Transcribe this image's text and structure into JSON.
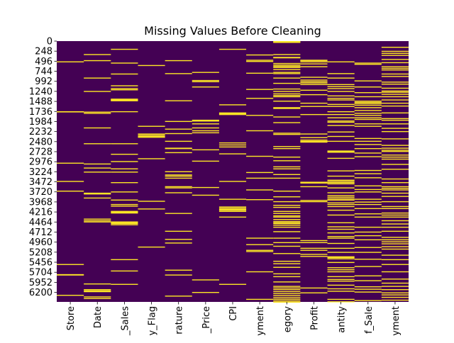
{
  "chart_data": {
    "type": "heatmap",
    "title": "Missing Values Before Cleaning",
    "xlabel": "",
    "ylabel": "",
    "columns": [
      "Store",
      "Date",
      "_Sales",
      "y_Flag",
      "rature",
      "_Price",
      "CPI",
      "yment",
      "egory",
      "Profit",
      "antity",
      "f_Sale",
      "yment"
    ],
    "y_ticks": [
      "0",
      "248",
      "496",
      "744",
      "992",
      "1240",
      "1488",
      "1736",
      "1984",
      "2232",
      "2480",
      "2728",
      "2976",
      "3224",
      "3472",
      "3720",
      "3968",
      "4216",
      "4464",
      "4712",
      "4960",
      "5208",
      "5456",
      "5704",
      "5952",
      "6200"
    ],
    "ylim": [
      0,
      6435
    ],
    "row_count": 6435,
    "colormap": {
      "present": "#440154",
      "missing": "#fde725"
    },
    "legend": "none",
    "grid": false,
    "missing_rows": [
      [
        500,
        1730,
        1735,
        3000,
        3450,
        3690,
        5500,
        5750,
        5760,
        6260
      ],
      [
        320,
        470,
        900,
        1230,
        1740,
        1770,
        2130,
        2520,
        3020,
        3120,
        3220,
        3740,
        3760,
        3860,
        4380,
        4420,
        4450,
        5980,
        6120,
        6150,
        6170,
        6300,
        6340
      ],
      [
        190,
        530,
        800,
        1090,
        1160,
        1190,
        1420,
        1430,
        1440,
        1450,
        1460,
        1730,
        2520,
        2780,
        2960,
        3140,
        3220,
        3480,
        3710,
        3910,
        4020,
        4060,
        4190,
        4210,
        4230,
        4450,
        4470,
        4490,
        4520,
        5380,
        5660,
        5990
      ],
      [
        590,
        2090,
        2280,
        2310,
        2340,
        2360,
        2890,
        3940,
        4130,
        5070
      ],
      [
        470,
        790,
        1460,
        1970,
        2160,
        2270,
        2460,
        2630,
        2640,
        2740,
        3210,
        3290,
        3320,
        3370,
        3580,
        3610,
        3730,
        4240,
        4680,
        4880,
        4970,
        5640,
        5760,
        6280
      ],
      [
        760,
        960,
        990,
        1120,
        1940,
        1960,
        2030,
        2130,
        2200,
        2250,
        2670,
        2950,
        3600,
        3790,
        5880,
        6190
      ],
      [
        190,
        1560,
        1760,
        1780,
        1800,
        2500,
        2550,
        2600,
        2770,
        3450,
        3890,
        4080,
        4110,
        4140,
        4160,
        4190,
        4330,
        5990
      ],
      [
        330,
        460,
        490,
        780,
        1180,
        1400,
        1820,
        2200,
        2830,
        3230,
        3370,
        3660,
        3900,
        4850,
        5010,
        5150,
        5180,
        5680,
        6360
      ],
      [
        0,
        10,
        20,
        320,
        390,
        400,
        540,
        580,
        610,
        640,
        690,
        760,
        790,
        900,
        1030,
        1170,
        1230,
        1290,
        1330,
        1360,
        1470,
        1630,
        1650,
        1860,
        2000,
        2260,
        2290,
        2590,
        2640,
        2850,
        2940,
        3090,
        3140,
        3280,
        3370,
        3690,
        3830,
        3950,
        4040,
        4090,
        4190,
        4240,
        4300,
        4330,
        4390,
        4440,
        4470,
        4490,
        4530,
        4580,
        4690,
        4850,
        4960,
        5050,
        5230,
        5420,
        5480,
        5570,
        5730,
        5800,
        5930,
        6040,
        6080,
        6120,
        6170,
        6220,
        6270,
        6320,
        6360,
        6400,
        6430
      ],
      [
        460,
        470,
        500,
        550,
        620,
        880,
        950,
        990,
        1020,
        1060,
        1200,
        1310,
        1520,
        1600,
        1800,
        2280,
        2370,
        2430,
        2460,
        2480,
        3470,
        3490,
        3580,
        3920,
        3950,
        4910,
        4960,
        5100,
        5150,
        5250,
        5300,
        6080,
        6200
      ],
      [
        500,
        790,
        900,
        1060,
        1110,
        1160,
        1230,
        1340,
        1400,
        1440,
        1550,
        1600,
        1730,
        1800,
        1880,
        1960,
        1990,
        2070,
        2230,
        2340,
        2460,
        2700,
        2710,
        2730,
        2880,
        3190,
        3320,
        3420,
        3450,
        3480,
        3510,
        3610,
        3730,
        3800,
        3840,
        3880,
        3910,
        3980,
        4020,
        4070,
        4160,
        4280,
        4470,
        4570,
        4630,
        4720,
        4810,
        4850,
        4980,
        5100,
        5200,
        5310,
        5330,
        5360,
        5450,
        5580,
        5630,
        5680,
        5800,
        5870,
        5910,
        6010,
        6100,
        6160,
        6360,
        6420
      ],
      [
        530,
        560,
        970,
        1120,
        1260,
        1360,
        1470,
        1500,
        1530,
        1570,
        1630,
        1700,
        1770,
        1820,
        1880,
        1920,
        2030,
        2090,
        2390,
        2460,
        2540,
        2640,
        2750,
        2840,
        3180,
        3260,
        3360,
        3560,
        3650,
        3710,
        3890,
        3960,
        4020,
        4120,
        4250,
        4330,
        4580,
        4700,
        4790,
        4890,
        5080,
        5200,
        5370,
        5550,
        5780,
        5900,
        6050,
        6110,
        6180,
        6390
      ],
      [
        140,
        240,
        290,
        340,
        440,
        520,
        620,
        660,
        700,
        800,
        860,
        1000,
        1050,
        1150,
        1220,
        1250,
        1300,
        1360,
        1440,
        1520,
        1590,
        1760,
        1900,
        1940,
        2030,
        2140,
        2220,
        2400,
        2560,
        2630,
        2680,
        2710,
        2800,
        2850,
        2900,
        3030,
        3150,
        3390,
        3480,
        3580,
        3620,
        3660,
        3740,
        3820,
        3950,
        4070,
        4120,
        4230,
        4280,
        4330,
        4420,
        4500,
        4580,
        4680,
        4830,
        4890,
        4940,
        4990,
        5060,
        5120,
        5270,
        5380,
        5500,
        5680,
        5860,
        5960,
        6040,
        6120,
        6200,
        6250,
        6310,
        6380
      ]
    ]
  }
}
